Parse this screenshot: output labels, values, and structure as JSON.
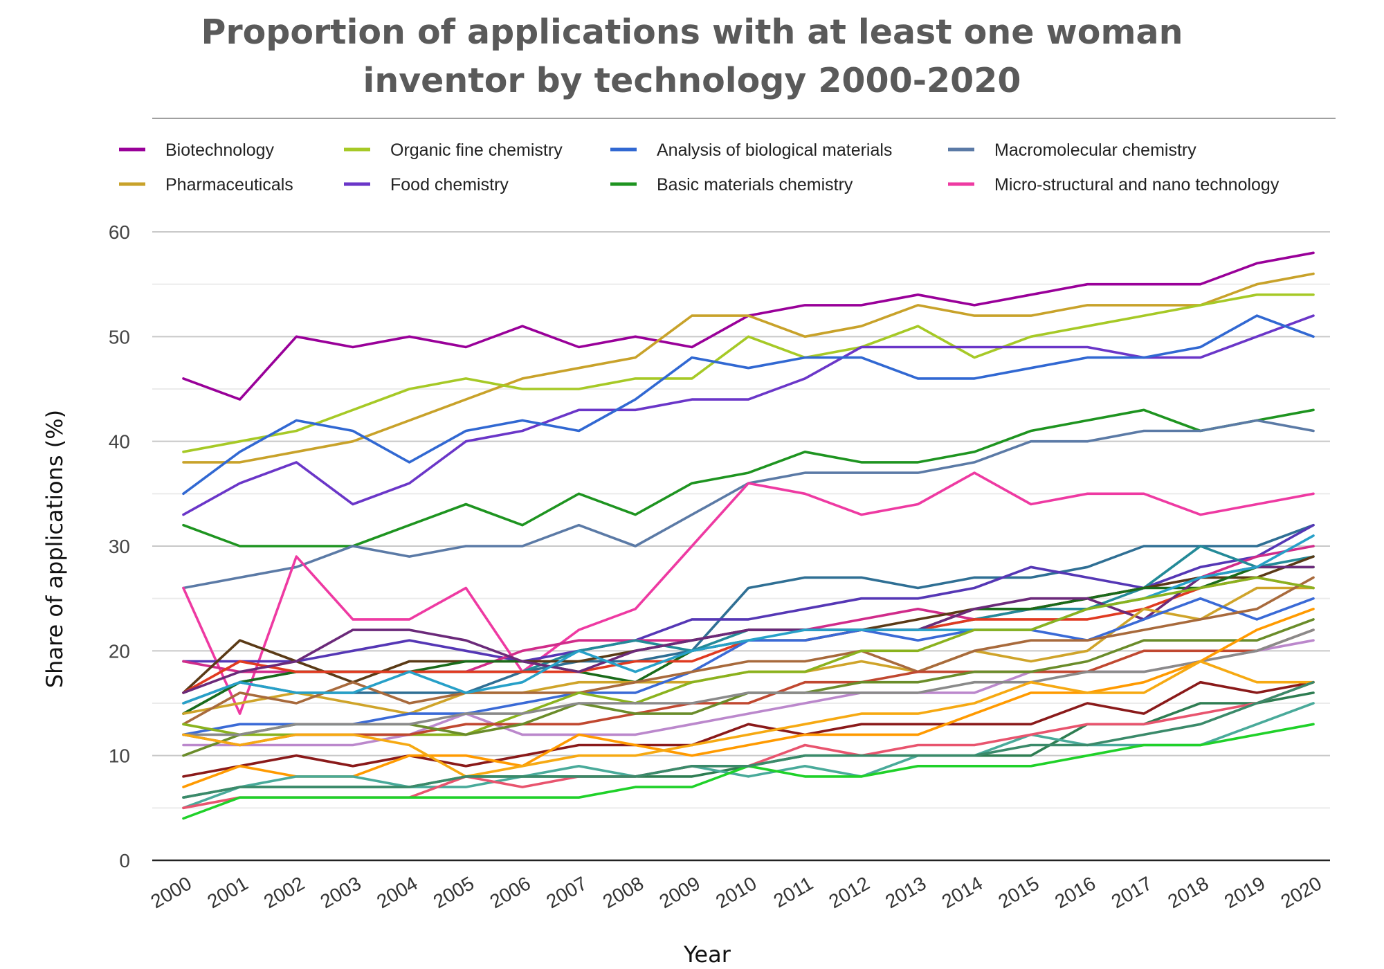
{
  "chart_data": {
    "type": "line",
    "title_lines": [
      "Proportion of applications with at least one woman",
      "inventor by technology 2000-2020"
    ],
    "xlabel": "Year",
    "ylabel": "Share of applications (%)",
    "ylim": [
      0,
      60
    ],
    "yticks": [
      0,
      10,
      20,
      30,
      40,
      50,
      60
    ],
    "grid": true,
    "legend_position": "top",
    "categories": [
      "2000",
      "2001",
      "2002",
      "2003",
      "2004",
      "2005",
      "2006",
      "2007",
      "2008",
      "2009",
      "2010",
      "2011",
      "2012",
      "2013",
      "2014",
      "2015",
      "2016",
      "2017",
      "2018",
      "2019",
      "2020"
    ],
    "series": [
      {
        "name": "Biotechnology",
        "color": "#990099",
        "values": [
          46,
          44,
          50,
          49,
          50,
          49,
          51,
          49,
          50,
          49,
          52,
          53,
          53,
          54,
          53,
          54,
          55,
          55,
          55,
          57,
          58
        ]
      },
      {
        "name": "Pharmaceuticals",
        "color": "#c8a22a",
        "values": [
          38,
          38,
          39,
          40,
          42,
          44,
          46,
          47,
          48,
          52,
          52,
          50,
          51,
          53,
          52,
          52,
          53,
          53,
          53,
          55,
          56
        ]
      },
      {
        "name": "Organic fine chemistry",
        "color": "#a6c926",
        "values": [
          39,
          40,
          41,
          43,
          45,
          46,
          45,
          45,
          46,
          46,
          50,
          48,
          49,
          51,
          48,
          50,
          51,
          52,
          53,
          54,
          54
        ]
      },
      {
        "name": "Food chemistry",
        "color": "#6a36c8",
        "values": [
          33,
          36,
          38,
          34,
          36,
          40,
          41,
          43,
          43,
          44,
          44,
          46,
          49,
          49,
          49,
          49,
          49,
          48,
          48,
          50,
          52
        ]
      },
      {
        "name": "Analysis of biological materials",
        "color": "#3168d2",
        "values": [
          35,
          39,
          42,
          41,
          38,
          41,
          42,
          41,
          44,
          48,
          47,
          48,
          48,
          46,
          46,
          47,
          48,
          48,
          49,
          52,
          50
        ]
      },
      {
        "name": "Basic materials chemistry",
        "color": "#1e9420",
        "values": [
          32,
          30,
          30,
          30,
          32,
          34,
          32,
          35,
          33,
          36,
          37,
          39,
          38,
          38,
          39,
          41,
          42,
          43,
          41,
          42,
          43
        ]
      },
      {
        "name": "Macromolecular chemistry",
        "color": "#5b7aa6",
        "values": [
          26,
          27,
          28,
          30,
          29,
          30,
          30,
          32,
          30,
          33,
          36,
          37,
          37,
          37,
          38,
          40,
          40,
          41,
          41,
          42,
          41
        ]
      },
      {
        "name": "Micro-structural and nano technology",
        "color": "#ee3aa2",
        "values": [
          26,
          14,
          29,
          23,
          23,
          26,
          18,
          22,
          24,
          30,
          36,
          35,
          33,
          34,
          37,
          34,
          35,
          35,
          33,
          34,
          35
        ]
      },
      {
        "color": "#2f6f94",
        "values": [
          15,
          17,
          16,
          16,
          16,
          16,
          18,
          19,
          19,
          20,
          26,
          27,
          27,
          26,
          27,
          27,
          28,
          30,
          30,
          30,
          32
        ]
      },
      {
        "color": "#5537b5",
        "values": [
          19,
          19,
          19,
          20,
          21,
          20,
          19,
          20,
          21,
          23,
          23,
          24,
          25,
          25,
          26,
          28,
          27,
          26,
          28,
          29,
          32
        ]
      },
      {
        "color": "#d02c8a",
        "values": [
          19,
          18,
          18,
          18,
          18,
          18,
          20,
          21,
          21,
          21,
          22,
          22,
          23,
          24,
          23,
          24,
          25,
          26,
          27,
          29,
          30
        ]
      },
      {
        "color": "#238a98",
        "values": [
          14,
          17,
          18,
          18,
          18,
          18,
          18,
          20,
          21,
          20,
          22,
          22,
          22,
          22,
          23,
          24,
          24,
          26,
          30,
          28,
          29
        ]
      },
      {
        "color": "#5a3a16",
        "values": [
          16,
          21,
          19,
          17,
          19,
          19,
          19,
          19,
          20,
          21,
          22,
          22,
          22,
          23,
          24,
          24,
          25,
          26,
          27,
          27,
          29
        ]
      },
      {
        "color": "#1a6b1a",
        "values": [
          14,
          17,
          18,
          18,
          18,
          19,
          19,
          18,
          17,
          20,
          21,
          21,
          22,
          22,
          24,
          24,
          25,
          26,
          26,
          28,
          28
        ]
      },
      {
        "color": "#e03a20",
        "values": [
          16,
          19,
          18,
          18,
          18,
          18,
          18,
          18,
          19,
          19,
          21,
          21,
          22,
          22,
          23,
          23,
          23,
          24,
          26,
          27,
          26
        ]
      },
      {
        "color": "#6b2a7a",
        "values": [
          16,
          18,
          19,
          22,
          22,
          21,
          19,
          18,
          20,
          21,
          22,
          22,
          22,
          22,
          24,
          25,
          25,
          23,
          27,
          28,
          28
        ]
      },
      {
        "color": "#cfa42a",
        "values": [
          14,
          15,
          16,
          15,
          14,
          16,
          16,
          17,
          17,
          17,
          18,
          18,
          19,
          18,
          20,
          19,
          20,
          24,
          23,
          26,
          26
        ]
      },
      {
        "color": "#3a6ad6",
        "values": [
          12,
          13,
          13,
          13,
          14,
          14,
          15,
          16,
          16,
          18,
          21,
          21,
          22,
          21,
          22,
          22,
          21,
          23,
          25,
          23,
          25
        ]
      },
      {
        "color": "#a86a3c",
        "values": [
          13,
          16,
          15,
          17,
          15,
          16,
          16,
          16,
          17,
          18,
          19,
          19,
          20,
          18,
          20,
          21,
          21,
          22,
          23,
          24,
          27
        ]
      },
      {
        "color": "#27a0c8",
        "values": [
          15,
          17,
          16,
          16,
          18,
          16,
          17,
          20,
          18,
          20,
          21,
          22,
          22,
          22,
          22,
          22,
          24,
          25,
          27,
          28,
          31
        ]
      },
      {
        "color": "#8ab21e",
        "values": [
          13,
          12,
          12,
          12,
          12,
          12,
          14,
          16,
          15,
          17,
          18,
          18,
          20,
          20,
          22,
          22,
          24,
          25,
          26,
          27,
          26
        ]
      },
      {
        "color": "#bb88cc",
        "values": [
          11,
          11,
          11,
          11,
          12,
          14,
          12,
          12,
          12,
          13,
          14,
          15,
          16,
          16,
          16,
          18,
          18,
          18,
          19,
          20,
          21
        ]
      },
      {
        "color": "#c04830",
        "values": [
          12,
          11,
          12,
          12,
          12,
          13,
          13,
          13,
          14,
          15,
          15,
          17,
          17,
          18,
          18,
          18,
          18,
          20,
          20,
          20,
          22
        ]
      },
      {
        "color": "#6a8c2a",
        "values": [
          10,
          12,
          13,
          13,
          13,
          12,
          13,
          15,
          14,
          14,
          16,
          16,
          17,
          17,
          18,
          18,
          19,
          21,
          21,
          21,
          23
        ]
      },
      {
        "color": "#8a8a8a",
        "values": [
          12,
          12,
          13,
          13,
          13,
          14,
          14,
          15,
          15,
          15,
          16,
          16,
          16,
          16,
          17,
          17,
          18,
          18,
          19,
          20,
          22
        ]
      },
      {
        "color": "#8a1a1a",
        "values": [
          8,
          9,
          10,
          9,
          10,
          9,
          10,
          11,
          11,
          11,
          13,
          12,
          13,
          13,
          13,
          13,
          15,
          14,
          17,
          16,
          17
        ]
      },
      {
        "color": "#ff9a00",
        "values": [
          7,
          9,
          8,
          8,
          10,
          10,
          9,
          12,
          11,
          10,
          11,
          12,
          12,
          12,
          14,
          16,
          16,
          17,
          19,
          22,
          24
        ]
      },
      {
        "color": "#f6a912",
        "values": [
          12,
          11,
          12,
          12,
          11,
          8,
          9,
          10,
          10,
          11,
          12,
          13,
          14,
          14,
          15,
          17,
          16,
          16,
          19,
          17,
          17
        ]
      },
      {
        "color": "#2e7d52",
        "values": [
          6,
          7,
          7,
          7,
          7,
          8,
          8,
          8,
          8,
          8,
          9,
          10,
          10,
          10,
          10,
          10,
          13,
          13,
          15,
          15,
          16
        ]
      },
      {
        "color": "#49aa9a",
        "values": [
          5,
          7,
          8,
          8,
          7,
          7,
          8,
          9,
          8,
          9,
          8,
          9,
          8,
          10,
          10,
          12,
          11,
          11,
          11,
          13,
          15
        ]
      },
      {
        "color": "#e8546e",
        "values": [
          5,
          6,
          6,
          6,
          6,
          8,
          7,
          8,
          8,
          9,
          9,
          11,
          10,
          11,
          11,
          12,
          13,
          13,
          14,
          15,
          17
        ]
      },
      {
        "color": "#1fd129",
        "values": [
          4,
          6,
          6,
          6,
          6,
          6,
          6,
          6,
          7,
          7,
          9,
          8,
          8,
          9,
          9,
          9,
          10,
          11,
          11,
          12,
          13
        ]
      },
      {
        "color": "#3a8a6a",
        "values": [
          6,
          7,
          7,
          7,
          7,
          8,
          8,
          8,
          8,
          9,
          9,
          10,
          10,
          10,
          10,
          11,
          11,
          12,
          13,
          15,
          17
        ]
      }
    ]
  }
}
